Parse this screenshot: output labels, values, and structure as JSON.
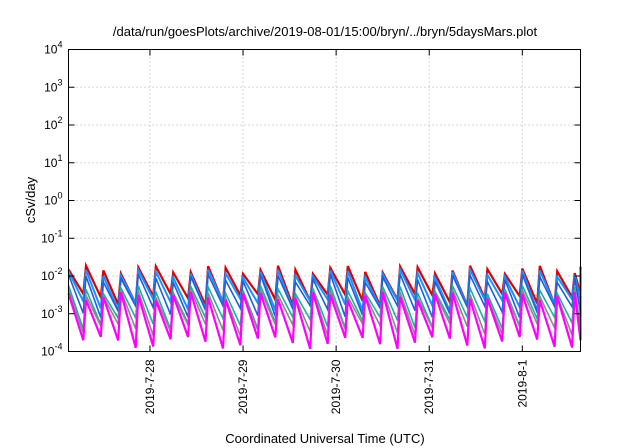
{
  "chart_data": {
    "type": "line",
    "title": "/data/run/goesPlots/archive/2019-08-01/15:00/bryn/../bryn/5daysMars.plot",
    "xlabel": "Coordinated Universal Time (UTC)",
    "ylabel": "cSv/day",
    "yscale": "log",
    "ylim": [
      0.0001,
      10000
    ],
    "xlim": [
      "2019-07-27 03:00",
      "2019-08-01 15:00"
    ],
    "y_ticks": [
      {
        "base": "10",
        "exp": "-4"
      },
      {
        "base": "10",
        "exp": "-3"
      },
      {
        "base": "10",
        "exp": "-2"
      },
      {
        "base": "10",
        "exp": "-1"
      },
      {
        "base": "10",
        "exp": "0"
      },
      {
        "base": "10",
        "exp": "1"
      },
      {
        "base": "10",
        "exp": "2"
      },
      {
        "base": "10",
        "exp": "3"
      },
      {
        "base": "10",
        "exp": "4"
      }
    ],
    "x_ticks": [
      "2019-7-28",
      "2019-7-29",
      "2019-7-30",
      "2019-7-31",
      "2019-8-1"
    ],
    "grid": true,
    "cycle_hours": 4.5,
    "series": [
      {
        "color": "#dd0000",
        "width": 2.2,
        "peak": 0.015,
        "trough": 0.0025
      },
      {
        "color": "#1e8fff",
        "width": 2.0,
        "peak": 0.012,
        "trough": 0.0018
      },
      {
        "color": "#1f5fd8",
        "width": 1.6,
        "peak": 0.009,
        "trough": 0.0012
      },
      {
        "color": "#20b0a0",
        "width": 1.6,
        "peak": 0.0045,
        "trough": 0.0006
      },
      {
        "color": "#8a8a8a",
        "width": 1.6,
        "peak": 0.0035,
        "trough": 0.0004
      },
      {
        "color": "#ff00ff",
        "width": 2.2,
        "peak": 0.003,
        "trough": 0.00018
      }
    ]
  }
}
